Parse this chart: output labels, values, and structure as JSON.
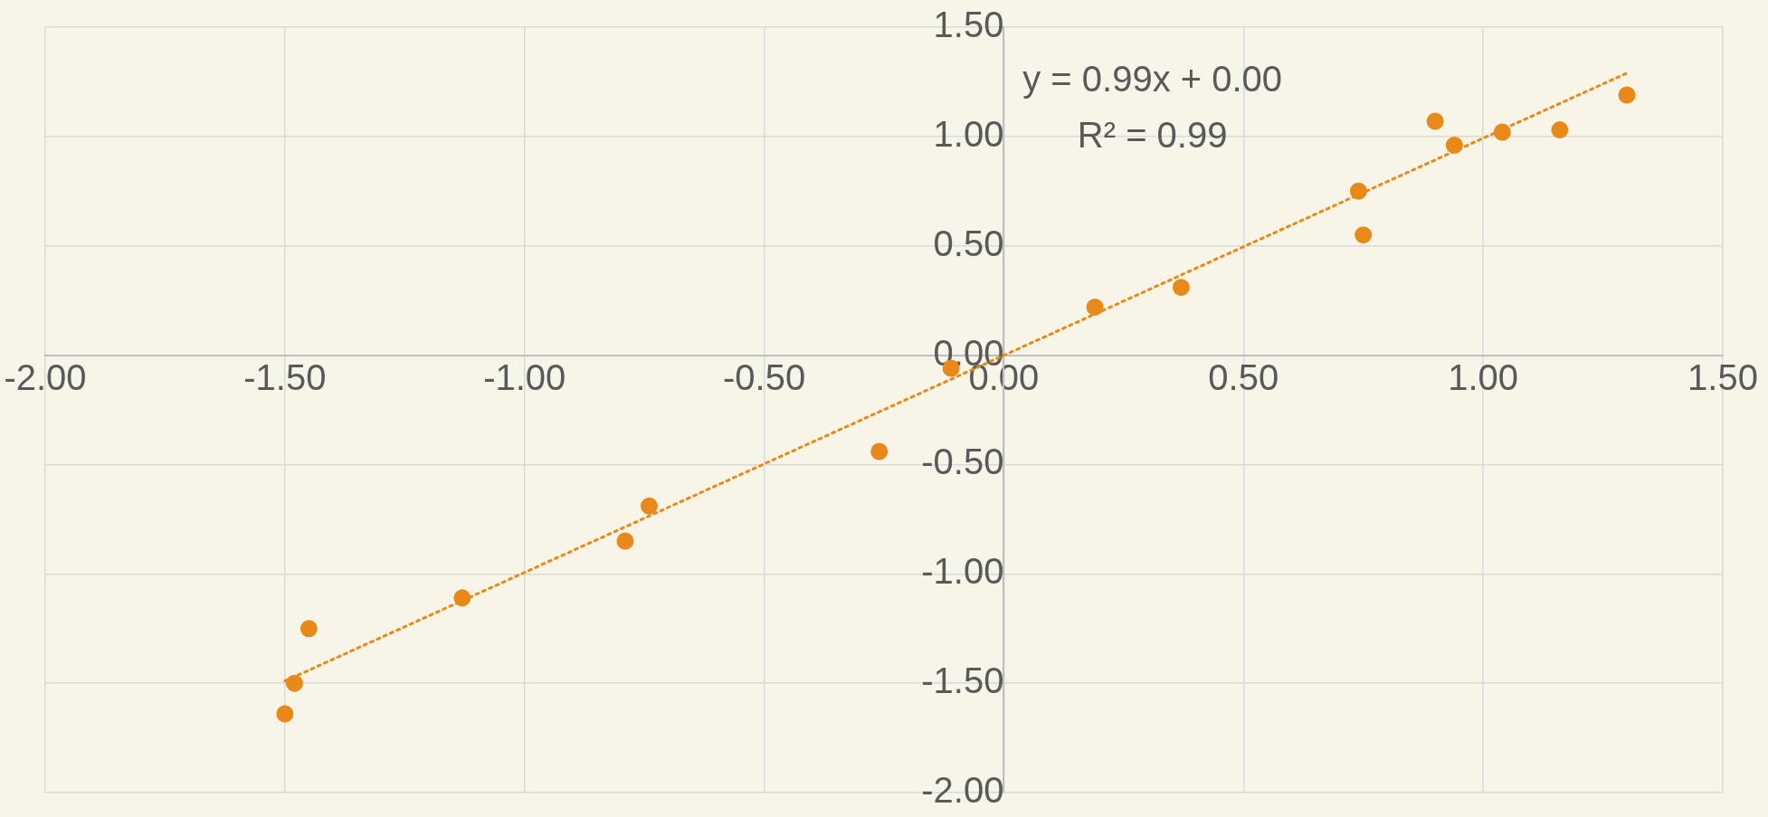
{
  "chart_data": {
    "type": "scatter",
    "xlim": [
      -2,
      1.5
    ],
    "ylim": [
      -2,
      1.5
    ],
    "xticks": [
      {
        "value": -2,
        "label": "-2.00"
      },
      {
        "value": -1.5,
        "label": "-1.50"
      },
      {
        "value": -1,
        "label": "-1.00"
      },
      {
        "value": -0.5,
        "label": "-0.50"
      },
      {
        "value": 0,
        "label": "0.00"
      },
      {
        "value": 0.5,
        "label": "0.50"
      },
      {
        "value": 1,
        "label": "1.00"
      },
      {
        "value": 1.5,
        "label": "1.50"
      }
    ],
    "yticks": [
      {
        "value": -2,
        "label": "-2.00"
      },
      {
        "value": -1.5,
        "label": "-1.50"
      },
      {
        "value": -1,
        "label": "-1.00"
      },
      {
        "value": -0.5,
        "label": "-0.50"
      },
      {
        "value": 0,
        "label": "0.00"
      },
      {
        "value": 0.5,
        "label": "0.50"
      },
      {
        "value": 1,
        "label": "1.00"
      },
      {
        "value": 1.5,
        "label": "1.50"
      }
    ],
    "grid": true,
    "marker": "circle",
    "series": [
      {
        "color": "#e8891a",
        "x": [
          -1.5,
          -1.48,
          -1.45,
          -1.13,
          -0.79,
          -0.74,
          -0.26,
          -0.11,
          0.19,
          0.37,
          0.74,
          0.75,
          0.9,
          0.94,
          1.04,
          1.16,
          1.3
        ],
        "values": [
          -1.64,
          -1.5,
          -1.25,
          -1.11,
          -0.85,
          -0.69,
          -0.44,
          -0.06,
          0.22,
          0.31,
          0.75,
          0.55,
          1.07,
          0.96,
          1.02,
          1.03,
          1.19
        ]
      },
      {
        "type": "line",
        "color": "#e8891a",
        "line_style": "dotted",
        "marker": "none",
        "x": [
          -1.5,
          1.3
        ],
        "values": [
          -1.49,
          1.29
        ]
      }
    ],
    "annotations": [
      "y = 0.99x + 0.00",
      "R² = 0.99"
    ]
  }
}
